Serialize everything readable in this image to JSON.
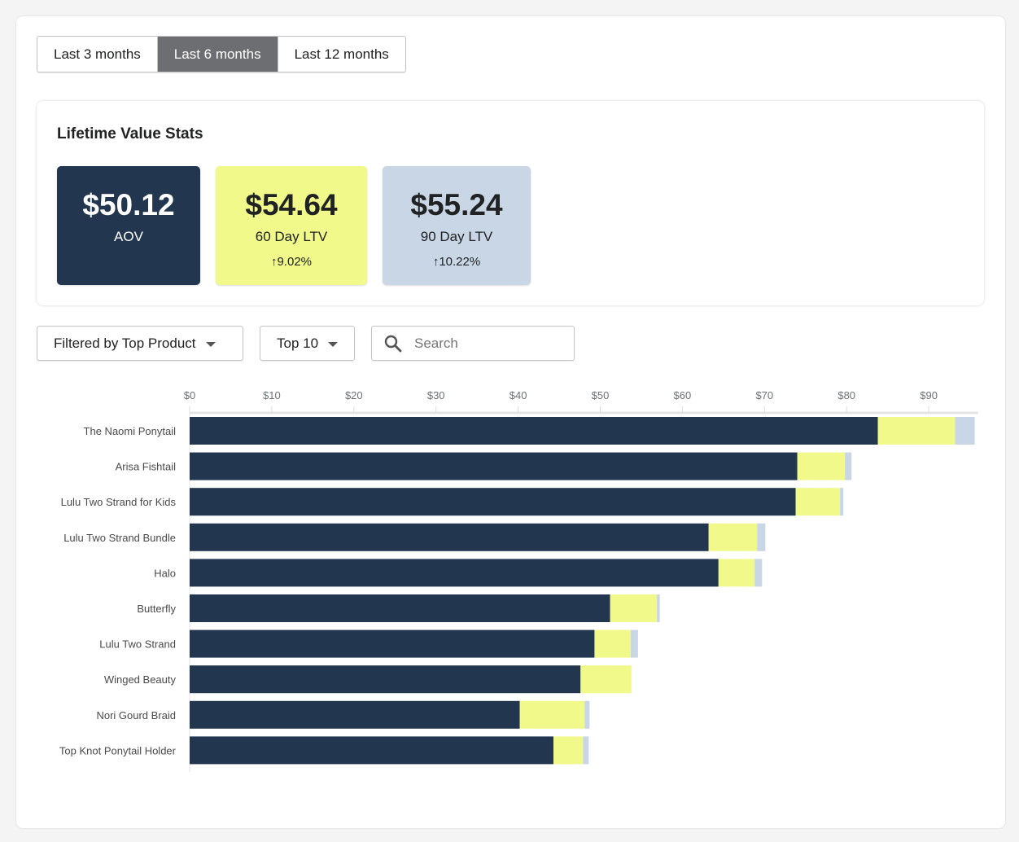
{
  "range_tabs": [
    {
      "label": "Last 3 months",
      "active": false
    },
    {
      "label": "Last 6 months",
      "active": true
    },
    {
      "label": "Last 12 months",
      "active": false
    }
  ],
  "stats": {
    "title": "Lifetime Value Stats",
    "cards": [
      {
        "value": "$50.12",
        "label": "AOV",
        "change": "",
        "bg": "#22364f",
        "fg": "#ffffff"
      },
      {
        "value": "$54.64",
        "label": "60 Day LTV",
        "change": "↑9.02%",
        "bg": "#f0f98a",
        "fg": "#202223"
      },
      {
        "value": "$55.24",
        "label": "90 Day LTV",
        "change": "↑10.22%",
        "bg": "#c9d6e6",
        "fg": "#202223"
      }
    ]
  },
  "filters": {
    "filter_label": "Filtered by Top Product",
    "top_label": "Top 10",
    "search_placeholder": "Search"
  },
  "chart_data": {
    "type": "bar",
    "orientation": "horizontal",
    "stacked": true,
    "categories": [
      "The Naomi Ponytail",
      "Arisa Fishtail",
      "Lulu Two Strand for Kids",
      "Lulu Two Strand Bundle",
      "Halo",
      "Butterfly",
      "Lulu Two Strand",
      "Winged Beauty",
      "Nori Gourd Braid",
      "Top Knot Ponytail Holder"
    ],
    "tick_labels": [
      "$0",
      "$10",
      "$20",
      "$30",
      "$40",
      "$50",
      "$60",
      "$70",
      "$80",
      "$90"
    ],
    "ticks": [
      0,
      10,
      20,
      30,
      40,
      50,
      60,
      70,
      80,
      90
    ],
    "xlim": [
      0,
      96
    ],
    "grid": false,
    "legend": "none",
    "series": [
      {
        "color": "#22364f",
        "values": [
          83.8,
          74.0,
          73.8,
          63.2,
          64.4,
          51.2,
          49.3,
          47.6,
          40.2,
          44.3
        ]
      },
      {
        "color": "#f0f98a",
        "values": [
          9.4,
          5.8,
          5.4,
          5.9,
          4.4,
          5.7,
          4.4,
          6.2,
          7.9,
          3.6
        ]
      },
      {
        "color": "#c9d6e6",
        "values": [
          2.4,
          0.8,
          0.4,
          1.0,
          0.9,
          0.35,
          0.9,
          0,
          0.6,
          0.7
        ]
      }
    ]
  }
}
